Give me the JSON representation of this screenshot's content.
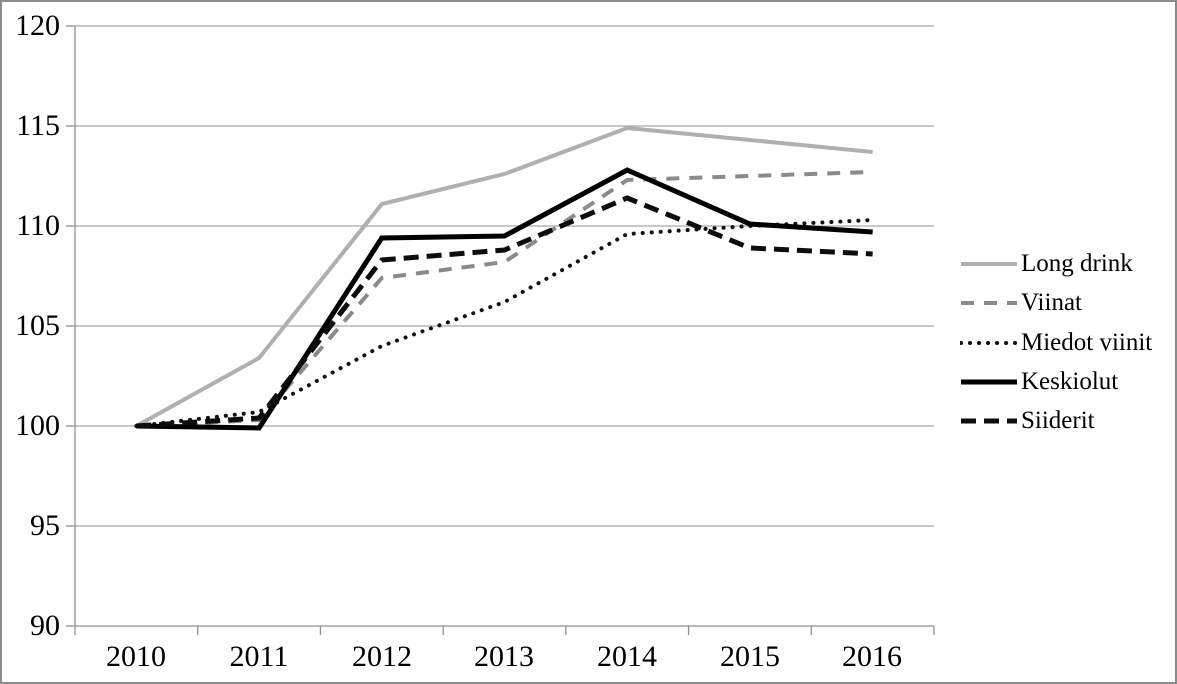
{
  "chart_data": {
    "type": "line",
    "title": "",
    "xlabel": "",
    "ylabel": "",
    "categories": [
      "2010",
      "2011",
      "2012",
      "2013",
      "2014",
      "2015",
      "2016"
    ],
    "y_ticks": [
      120,
      115,
      110,
      105,
      100,
      95,
      90
    ],
    "ylim": [
      90,
      120
    ],
    "grid": true,
    "legend_position": "right",
    "series": [
      {
        "name": "Long drink",
        "values": [
          100,
          103.4,
          111.1,
          112.6,
          114.9,
          114.3,
          113.7
        ],
        "color": "#b0b0b0",
        "width": 4,
        "dash": "",
        "linecap": "butt"
      },
      {
        "name": "Viinat",
        "values": [
          100,
          100.3,
          107.4,
          108.2,
          112.3,
          112.5,
          112.7
        ],
        "color": "#8a8a8a",
        "width": 4,
        "dash": "13 10",
        "linecap": "butt"
      },
      {
        "name": "Miedot viinit",
        "values": [
          100,
          100.7,
          104.0,
          106.2,
          109.6,
          110.0,
          110.3
        ],
        "color": "#111111",
        "width": 4,
        "dash": "0.1 8.9",
        "linecap": "round"
      },
      {
        "name": "Keskiolut",
        "values": [
          100,
          99.9,
          109.4,
          109.5,
          112.8,
          110.1,
          109.7
        ],
        "color": "#000000",
        "width": 5,
        "dash": "",
        "linecap": "butt"
      },
      {
        "name": "Siiderit",
        "values": [
          100,
          100.4,
          108.3,
          108.8,
          111.4,
          108.9,
          108.6
        ],
        "color": "#0d0d0d",
        "width": 5,
        "dash": "15 8",
        "linecap": "butt"
      }
    ]
  },
  "colors": {
    "background": "#ffffff",
    "border": "#8c8c8c",
    "grid": "#a6a6a6",
    "axis": "#8f8f8f",
    "text": "#000000"
  }
}
